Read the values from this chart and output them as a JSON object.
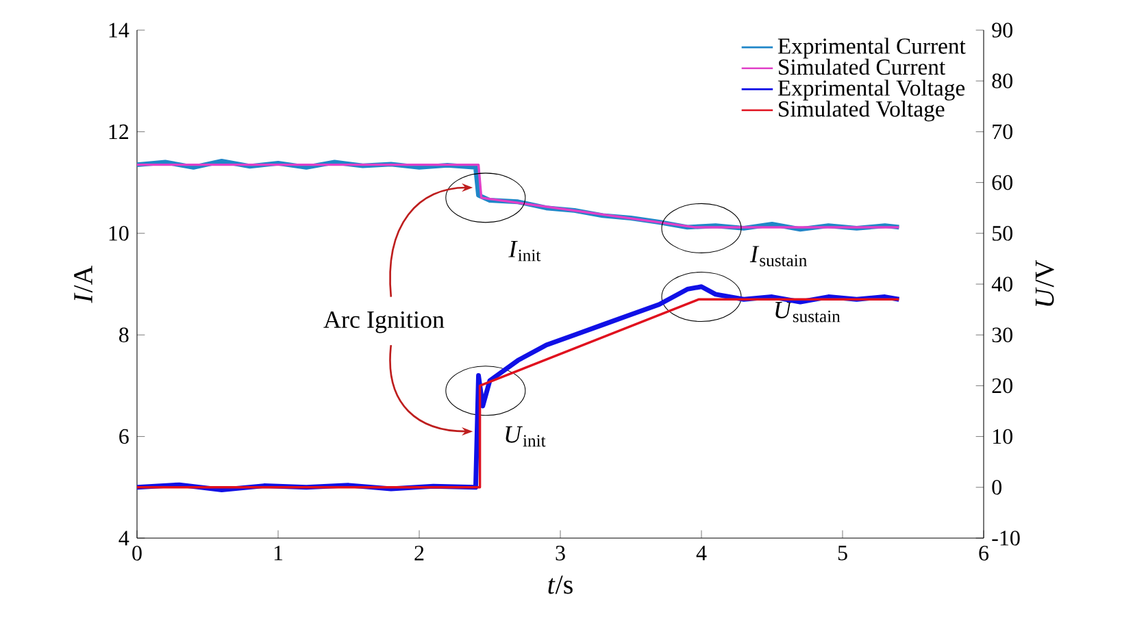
{
  "chart_data": {
    "type": "line",
    "xlabel": "*t*/s",
    "ylabel": "*I*/A",
    "y2label": "*U*/V",
    "xlim": [
      0,
      6
    ],
    "xticks": [
      0,
      1,
      2,
      3,
      4,
      5,
      6
    ],
    "ylim": [
      4,
      14
    ],
    "yticks": [
      4,
      6,
      8,
      10,
      12,
      14
    ],
    "y2lim": [
      -10,
      90
    ],
    "y2ticks": [
      -10,
      0,
      10,
      20,
      30,
      40,
      50,
      60,
      70,
      80,
      90
    ],
    "legend": "top right",
    "grid": false,
    "annotations": [
      "Arc Ignition",
      "*I*$_{init}$",
      "*I*$_{sustain}$",
      "*U*$_{init}$",
      "*U*$_{sustain}$"
    ],
    "series": [
      {
        "name": "Exprimental Current",
        "color": "#1f86c8",
        "x": [
          0,
          0.2,
          0.4,
          0.6,
          0.8,
          1.0,
          1.2,
          1.4,
          1.6,
          1.8,
          2.0,
          2.2,
          2.4,
          2.42,
          2.5,
          2.7,
          2.9,
          3.1,
          3.3,
          3.5,
          3.7,
          3.9,
          4.1,
          4.3,
          4.5,
          4.7,
          4.9,
          5.1,
          5.3,
          5.4
        ],
        "values": [
          11.35,
          11.4,
          11.3,
          11.42,
          11.32,
          11.38,
          11.3,
          11.4,
          11.33,
          11.36,
          11.3,
          11.34,
          11.3,
          10.75,
          10.65,
          10.62,
          10.5,
          10.45,
          10.35,
          10.3,
          10.22,
          10.12,
          10.15,
          10.1,
          10.18,
          10.08,
          10.15,
          10.1,
          10.15,
          10.12
        ]
      },
      {
        "name": "Simulated Current",
        "color": "#e040c8",
        "x": [
          0,
          2.42,
          2.44,
          3.95,
          5.4
        ],
        "values": [
          11.35,
          11.35,
          10.7,
          10.12,
          10.12
        ]
      },
      {
        "name": "Exprimental Voltage",
        "color": "#1010e6",
        "axis": "y2",
        "x": [
          0,
          0.3,
          0.6,
          0.9,
          1.2,
          1.5,
          1.8,
          2.1,
          2.4,
          2.42,
          2.45,
          2.5,
          2.7,
          2.9,
          3.1,
          3.3,
          3.5,
          3.7,
          3.9,
          4.0,
          4.1,
          4.3,
          4.5,
          4.7,
          4.9,
          5.1,
          5.3,
          5.4
        ],
        "values": [
          0,
          0.5,
          -0.5,
          0.3,
          0,
          0.4,
          -0.3,
          0.2,
          0,
          22,
          16,
          21,
          25,
          28,
          30,
          32,
          34,
          36,
          39,
          39.5,
          38,
          37,
          37.5,
          36.5,
          37.5,
          37,
          37.5,
          37
        ]
      },
      {
        "name": "Simulated Voltage",
        "color": "#e0101e",
        "axis": "y2",
        "x": [
          0,
          2.43,
          2.43,
          3.98,
          5.4
        ],
        "values": [
          0,
          0,
          20,
          37,
          37
        ]
      }
    ]
  }
}
